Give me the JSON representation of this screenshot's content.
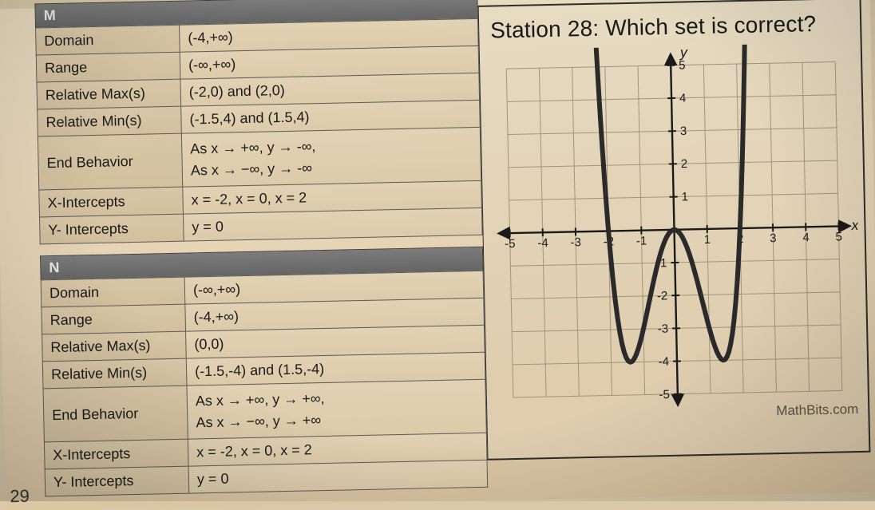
{
  "station_title": "Station 28: Which set is correct?",
  "page_number": "29",
  "watermark": "MathBits.com",
  "headers": {
    "m": "M",
    "n": "N"
  },
  "row_labels": {
    "domain": "Domain",
    "range": "Range",
    "relmax": "Relative Max(s)",
    "relmin": "Relative Min(s)",
    "endbeh": "End Behavior",
    "xint": "X-Intercepts",
    "yint": "Y- Intercepts"
  },
  "set_m": {
    "domain": "(-4,+∞)",
    "range": "(-∞,+∞)",
    "relmax": "(-2,0) and (2,0)",
    "relmin": "(-1.5,4) and (1.5,4)",
    "endbeh_1": "As x → +∞,  y → -∞,",
    "endbeh_2": "As x → −∞, y → -∞",
    "xint": "x = -2, x = 0, x = 2",
    "yint": "y = 0"
  },
  "set_n": {
    "domain": "(-∞,+∞)",
    "range": "(-4,+∞)",
    "relmax": "(0,0)",
    "relmin": "(-1.5,-4) and (1.5,-4)",
    "endbeh_1": "As x → +∞,  y → +∞,",
    "endbeh_2": "As x → −∞, y → +∞",
    "xint": "x = -2, x = 0, x = 2",
    "yint": "y = 0"
  },
  "graph": {
    "type": "function-plot",
    "x_label": "x",
    "y_label": "y",
    "xlim": [
      -5,
      5
    ],
    "ylim": [
      -5,
      5
    ],
    "xtick_step": 1,
    "ytick_step": 1,
    "xtick_labels": [
      "-5",
      "-4",
      "-3",
      "-2",
      "-1",
      "1",
      "2",
      "3",
      "4",
      "5"
    ],
    "ytick_labels": [
      "-5",
      "-4",
      "-3",
      "-2",
      "-1",
      "1",
      "2",
      "3",
      "4",
      "5"
    ],
    "grid": true,
    "grid_color": "#a39478",
    "axis_color": "#1a1a1a",
    "background_color": "transparent",
    "curve": {
      "description": "W-shaped quartic y = x^4 - 4x^2",
      "color": "#2a2a2a",
      "stroke_width": 6,
      "arrows": true,
      "x_intercepts": [
        -2,
        0,
        2
      ],
      "relative_max": [
        [
          0,
          0
        ]
      ],
      "relative_min": [
        [
          -1.5,
          -4
        ],
        [
          1.5,
          -4
        ]
      ],
      "sample_points_x_step": 0.06,
      "x_plot_range": [
        -2.32,
        2.32
      ]
    },
    "label_fontsize": 15
  },
  "colors": {
    "paper": "#e5d3b4",
    "table_border": "#5c5c5c",
    "header_bg": "#6e6e6e",
    "header_fg": "#e9e9e9",
    "text": "#1a1a1a"
  }
}
